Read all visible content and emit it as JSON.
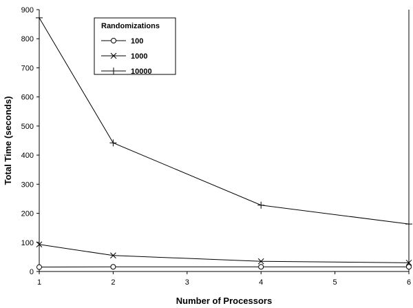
{
  "chart_data": {
    "type": "line",
    "xlabel": "Number of Processors",
    "ylabel": "Total Time (seconds)",
    "xlim": [
      1,
      6
    ],
    "ylim": [
      0,
      900
    ],
    "x_ticks": [
      "1",
      "2",
      "3",
      "4",
      "5",
      "6"
    ],
    "y_ticks": [
      "0",
      "100",
      "200",
      "300",
      "400",
      "500",
      "600",
      "700",
      "800",
      "900"
    ],
    "grid": false,
    "legend_title": "Randomizations",
    "legend_position": "top-left",
    "x": [
      1,
      2,
      4,
      6
    ],
    "series": [
      {
        "name": "100",
        "marker": "circle",
        "values": [
          15,
          16,
          16,
          16
        ]
      },
      {
        "name": "1000",
        "marker": "x",
        "values": [
          93,
          55,
          35,
          30
        ]
      },
      {
        "name": "10000",
        "marker": "plus",
        "values": [
          872,
          442,
          228,
          163
        ]
      }
    ],
    "colors": {
      "line": "#000000",
      "axis": "#000000",
      "background": "#ffffff"
    }
  }
}
